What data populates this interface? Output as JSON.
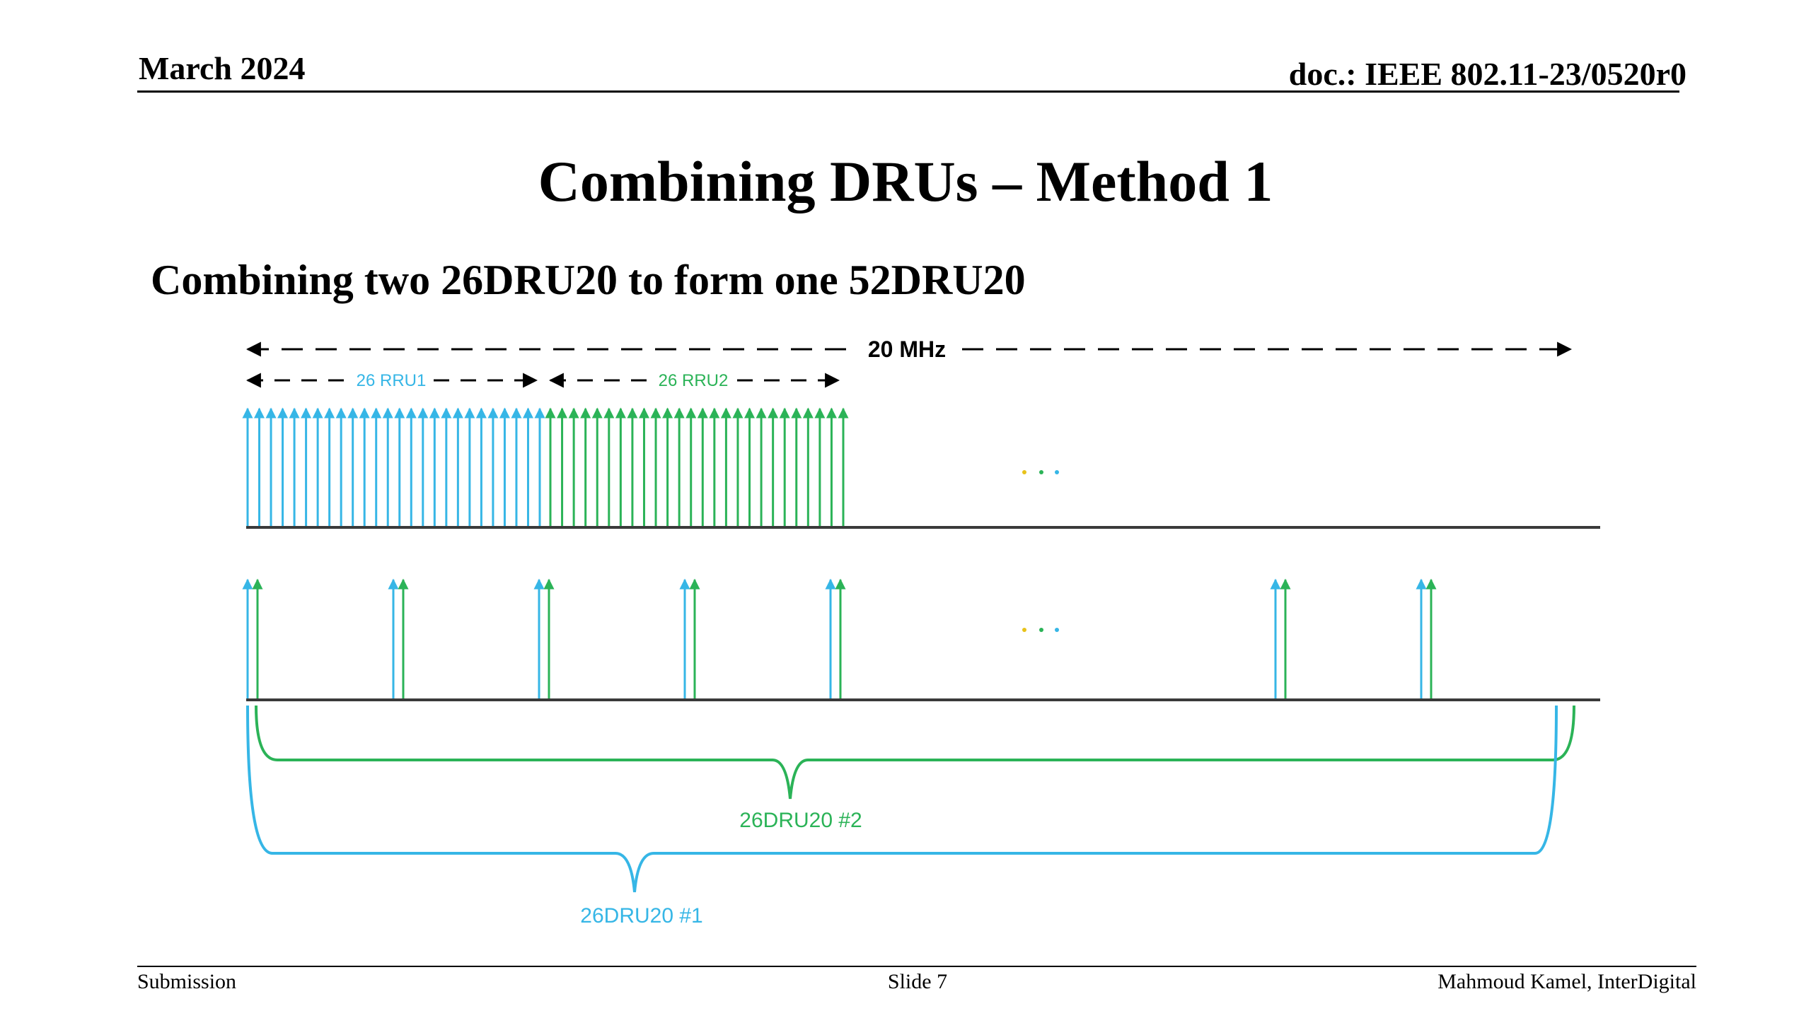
{
  "header": {
    "date": "March 2024",
    "doc": "doc.: IEEE 802.11-23/0520r0"
  },
  "title": "Combining DRUs – Method 1",
  "subtitle": "Combining two 26DRU20 to form one 52DRU20",
  "diagram": {
    "bandwidth_label": "20 MHz",
    "rru1_label": "26 RRU1",
    "rru2_label": "26 RRU2",
    "ellipsis": "…",
    "dru2_label": "26DRU20 #2",
    "dru1_label": "26DRU20 #1",
    "colors": {
      "blue": "#36b6e6",
      "green": "#2bb357",
      "axis": "#3a3a3a",
      "dot_yellow": "#e8c21a"
    }
  },
  "footer": {
    "left": "Submission",
    "center": "Slide 7",
    "right": "Mahmoud Kamel, InterDigital"
  }
}
